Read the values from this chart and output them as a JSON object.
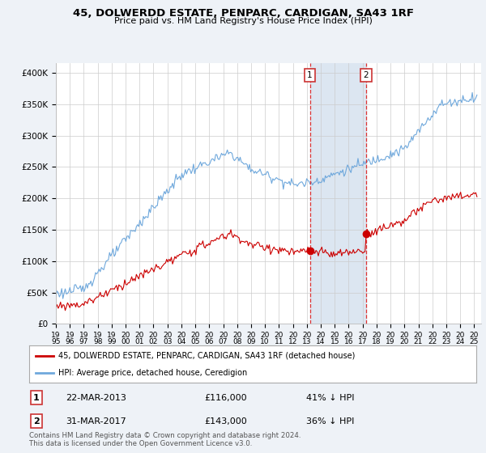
{
  "title": "45, DOLWERDD ESTATE, PENPARC, CARDIGAN, SA43 1RF",
  "subtitle": "Price paid vs. HM Land Registry's House Price Index (HPI)",
  "ylabel_ticks": [
    "£0",
    "£50K",
    "£100K",
    "£150K",
    "£200K",
    "£250K",
    "£300K",
    "£350K",
    "£400K"
  ],
  "ytick_values": [
    0,
    50000,
    100000,
    150000,
    200000,
    250000,
    300000,
    350000,
    400000
  ],
  "ylim": [
    0,
    415000
  ],
  "xlim_start": 1995.0,
  "xlim_end": 2025.5,
  "hpi_color": "#6fa8dc",
  "price_color": "#cc0000",
  "shaded_color": "#dce6f1",
  "marker1_x": 2013.22,
  "marker1_y": 116000,
  "marker2_x": 2017.25,
  "marker2_y": 143000,
  "marker1_label": "1",
  "marker1_date": "22-MAR-2013",
  "marker1_price": "£116,000",
  "marker1_hpi": "41% ↓ HPI",
  "marker2_label": "2",
  "marker2_date": "31-MAR-2017",
  "marker2_price": "£143,000",
  "marker2_hpi": "36% ↓ HPI",
  "legend_line1": "45, DOLWERDD ESTATE, PENPARC, CARDIGAN, SA43 1RF (detached house)",
  "legend_line2": "HPI: Average price, detached house, Ceredigion",
  "footer": "Contains HM Land Registry data © Crown copyright and database right 2024.\nThis data is licensed under the Open Government Licence v3.0.",
  "background_color": "#eef2f7",
  "plot_bg_color": "#ffffff",
  "grid_color": "#cccccc"
}
